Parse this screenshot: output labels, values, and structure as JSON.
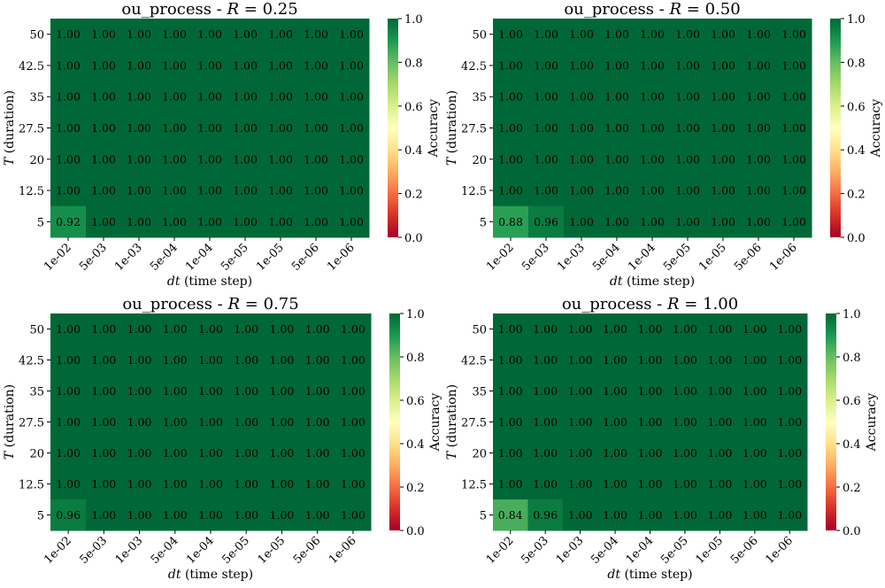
{
  "chart_data": [
    {
      "type": "heatmap",
      "title": "ou_process - R = 0.25",
      "title_prefix": "ou_process - ",
      "title_symbol": "R",
      "title_value": " = 0.25",
      "xlabel_symbol": "dt",
      "xlabel_text": " (time step)",
      "ylabel_symbol": "T",
      "ylabel_text": " (duration)",
      "x_tick_labels": [
        "1e-02",
        "5e-03",
        "1e-03",
        "5e-04",
        "1e-04",
        "5e-05",
        "1e-05",
        "5e-06",
        "1e-06"
      ],
      "y_tick_labels": [
        "50",
        "42.5",
        "35",
        "27.5",
        "20",
        "12.5",
        "5"
      ],
      "values": [
        [
          1.0,
          1.0,
          1.0,
          1.0,
          1.0,
          1.0,
          1.0,
          1.0,
          1.0
        ],
        [
          1.0,
          1.0,
          1.0,
          1.0,
          1.0,
          1.0,
          1.0,
          1.0,
          1.0
        ],
        [
          1.0,
          1.0,
          1.0,
          1.0,
          1.0,
          1.0,
          1.0,
          1.0,
          1.0
        ],
        [
          1.0,
          1.0,
          1.0,
          1.0,
          1.0,
          1.0,
          1.0,
          1.0,
          1.0
        ],
        [
          1.0,
          1.0,
          1.0,
          1.0,
          1.0,
          1.0,
          1.0,
          1.0,
          1.0
        ],
        [
          1.0,
          1.0,
          1.0,
          1.0,
          1.0,
          1.0,
          1.0,
          1.0,
          1.0
        ],
        [
          0.92,
          1.0,
          1.0,
          1.0,
          1.0,
          1.0,
          1.0,
          1.0,
          1.0
        ]
      ],
      "colorbar": {
        "label": "Accuracy",
        "range": [
          0.0,
          1.0
        ],
        "ticks": [
          "0.0",
          "0.2",
          "0.4",
          "0.6",
          "0.8",
          "1.0"
        ],
        "colormap": "RdYlGn"
      }
    },
    {
      "type": "heatmap",
      "title": "ou_process - R = 0.50",
      "title_prefix": "ou_process - ",
      "title_symbol": "R",
      "title_value": " = 0.50",
      "xlabel_symbol": "dt",
      "xlabel_text": " (time step)",
      "ylabel_symbol": "T",
      "ylabel_text": " (duration)",
      "x_tick_labels": [
        "1e-02",
        "5e-03",
        "1e-03",
        "5e-04",
        "1e-04",
        "5e-05",
        "1e-05",
        "5e-06",
        "1e-06"
      ],
      "y_tick_labels": [
        "50",
        "42.5",
        "35",
        "27.5",
        "20",
        "12.5",
        "5"
      ],
      "values": [
        [
          1.0,
          1.0,
          1.0,
          1.0,
          1.0,
          1.0,
          1.0,
          1.0,
          1.0
        ],
        [
          1.0,
          1.0,
          1.0,
          1.0,
          1.0,
          1.0,
          1.0,
          1.0,
          1.0
        ],
        [
          1.0,
          1.0,
          1.0,
          1.0,
          1.0,
          1.0,
          1.0,
          1.0,
          1.0
        ],
        [
          1.0,
          1.0,
          1.0,
          1.0,
          1.0,
          1.0,
          1.0,
          1.0,
          1.0
        ],
        [
          1.0,
          1.0,
          1.0,
          1.0,
          1.0,
          1.0,
          1.0,
          1.0,
          1.0
        ],
        [
          1.0,
          1.0,
          1.0,
          1.0,
          1.0,
          1.0,
          1.0,
          1.0,
          1.0
        ],
        [
          0.88,
          0.96,
          1.0,
          1.0,
          1.0,
          1.0,
          1.0,
          1.0,
          1.0
        ]
      ],
      "colorbar": {
        "label": "Accuracy",
        "range": [
          0.0,
          1.0
        ],
        "ticks": [
          "0.0",
          "0.2",
          "0.4",
          "0.6",
          "0.8",
          "1.0"
        ],
        "colormap": "RdYlGn"
      }
    },
    {
      "type": "heatmap",
      "title": "ou_process - R = 0.75",
      "title_prefix": "ou_process - ",
      "title_symbol": "R",
      "title_value": " = 0.75",
      "xlabel_symbol": "dt",
      "xlabel_text": " (time step)",
      "ylabel_symbol": "T",
      "ylabel_text": " (duration)",
      "x_tick_labels": [
        "1e-02",
        "5e-03",
        "1e-03",
        "5e-04",
        "1e-04",
        "5e-05",
        "1e-05",
        "5e-06",
        "1e-06"
      ],
      "y_tick_labels": [
        "50",
        "42.5",
        "35",
        "27.5",
        "20",
        "12.5",
        "5"
      ],
      "values": [
        [
          1.0,
          1.0,
          1.0,
          1.0,
          1.0,
          1.0,
          1.0,
          1.0,
          1.0
        ],
        [
          1.0,
          1.0,
          1.0,
          1.0,
          1.0,
          1.0,
          1.0,
          1.0,
          1.0
        ],
        [
          1.0,
          1.0,
          1.0,
          1.0,
          1.0,
          1.0,
          1.0,
          1.0,
          1.0
        ],
        [
          1.0,
          1.0,
          1.0,
          1.0,
          1.0,
          1.0,
          1.0,
          1.0,
          1.0
        ],
        [
          1.0,
          1.0,
          1.0,
          1.0,
          1.0,
          1.0,
          1.0,
          1.0,
          1.0
        ],
        [
          1.0,
          1.0,
          1.0,
          1.0,
          1.0,
          1.0,
          1.0,
          1.0,
          1.0
        ],
        [
          0.96,
          1.0,
          1.0,
          1.0,
          1.0,
          1.0,
          1.0,
          1.0,
          1.0
        ]
      ],
      "colorbar": {
        "label": "Accuracy",
        "range": [
          0.0,
          1.0
        ],
        "ticks": [
          "0.0",
          "0.2",
          "0.4",
          "0.6",
          "0.8",
          "1.0"
        ],
        "colormap": "RdYlGn"
      }
    },
    {
      "type": "heatmap",
      "title": "ou_process - R = 1.00",
      "title_prefix": "ou_process - ",
      "title_symbol": "R",
      "title_value": " = 1.00",
      "xlabel_symbol": "dt",
      "xlabel_text": " (time step)",
      "ylabel_symbol": "T",
      "ylabel_text": " (duration)",
      "x_tick_labels": [
        "1e-02",
        "5e-03",
        "1e-03",
        "5e-04",
        "1e-04",
        "5e-05",
        "1e-05",
        "5e-06",
        "1e-06"
      ],
      "y_tick_labels": [
        "50",
        "42.5",
        "35",
        "27.5",
        "20",
        "12.5",
        "5"
      ],
      "values": [
        [
          1.0,
          1.0,
          1.0,
          1.0,
          1.0,
          1.0,
          1.0,
          1.0,
          1.0
        ],
        [
          1.0,
          1.0,
          1.0,
          1.0,
          1.0,
          1.0,
          1.0,
          1.0,
          1.0
        ],
        [
          1.0,
          1.0,
          1.0,
          1.0,
          1.0,
          1.0,
          1.0,
          1.0,
          1.0
        ],
        [
          1.0,
          1.0,
          1.0,
          1.0,
          1.0,
          1.0,
          1.0,
          1.0,
          1.0
        ],
        [
          1.0,
          1.0,
          1.0,
          1.0,
          1.0,
          1.0,
          1.0,
          1.0,
          1.0
        ],
        [
          1.0,
          1.0,
          1.0,
          1.0,
          1.0,
          1.0,
          1.0,
          1.0,
          1.0
        ],
        [
          0.84,
          0.96,
          1.0,
          1.0,
          1.0,
          1.0,
          1.0,
          1.0,
          1.0
        ]
      ],
      "colorbar": {
        "label": "Accuracy",
        "range": [
          0.0,
          1.0
        ],
        "ticks": [
          "0.0",
          "0.2",
          "0.4",
          "0.6",
          "0.8",
          "1.0"
        ],
        "colormap": "RdYlGn"
      }
    }
  ]
}
